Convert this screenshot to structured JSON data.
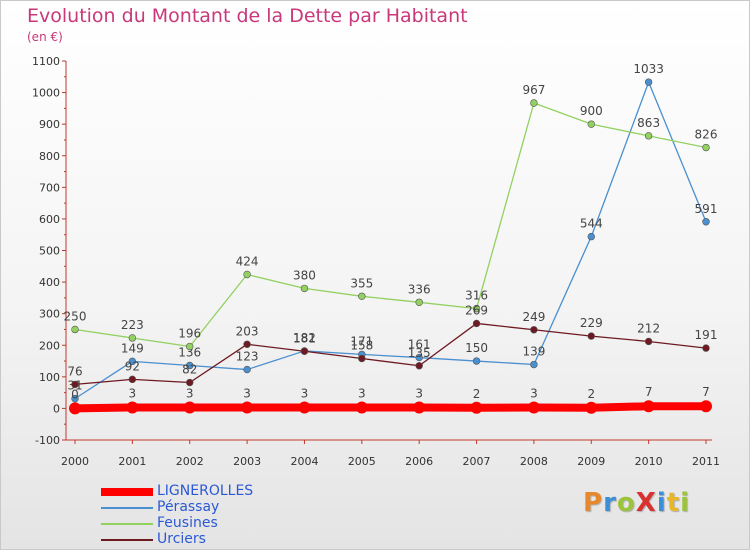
{
  "title": "Evolution du Montant de la Dette par Habitant",
  "unit_label": "(en €)",
  "logo_text": "ProXiti",
  "chart_data": {
    "type": "line",
    "title": "Evolution du Montant de la Dette par Habitant",
    "ylabel": "(en €)",
    "xlabel": "",
    "x": [
      "2000",
      "2001",
      "2002",
      "2003",
      "2004",
      "2005",
      "2006",
      "2007",
      "2008",
      "2009",
      "2010",
      "2011"
    ],
    "ylim": [
      -100,
      1100
    ],
    "yticks": [
      -100,
      0,
      100,
      200,
      300,
      400,
      500,
      600,
      700,
      800,
      900,
      1000,
      1100
    ],
    "grid": false,
    "legend_position": "bottom-left",
    "series": [
      {
        "name": "Pérassay",
        "color": "#4a8fcf",
        "values": [
          31,
          149,
          136,
          123,
          182,
          171,
          161,
          150,
          139,
          544,
          1033,
          591
        ]
      },
      {
        "name": "Feusines",
        "color": "#92d160",
        "values": [
          250,
          223,
          196,
          424,
          380,
          355,
          336,
          316,
          967,
          900,
          863,
          826
        ]
      },
      {
        "name": "Urciers",
        "color": "#6e1a22",
        "values": [
          76,
          92,
          82,
          203,
          181,
          158,
          135,
          269,
          249,
          229,
          212,
          191
        ]
      },
      {
        "name": "LIGNEROLLES",
        "color": "#ff0000",
        "values": [
          0,
          3,
          3,
          3,
          3,
          3,
          3,
          2,
          3,
          2,
          7,
          7
        ]
      }
    ]
  }
}
